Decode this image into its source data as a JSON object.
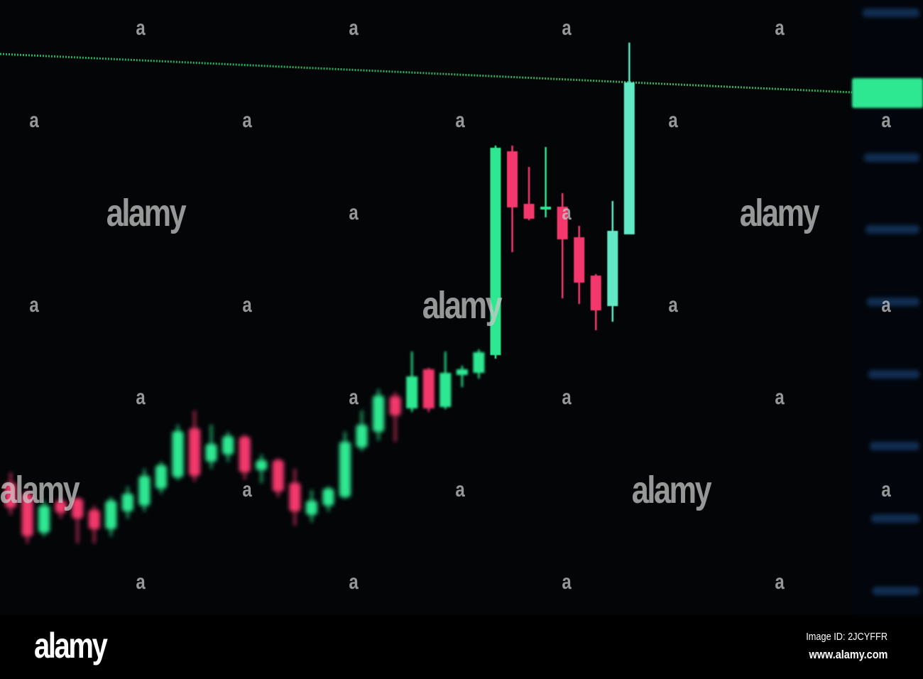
{
  "chart_data": {
    "type": "candlestick",
    "title": "",
    "xlabel": "",
    "ylabel": "",
    "ylim": [
      0,
      86
    ],
    "grid": false,
    "y_tick_labels_legible": false,
    "current_price_line": 74.4,
    "colors": {
      "up": "#2fe891",
      "down": "#f2386c",
      "up_latest": "#62e8c4",
      "price_line": "#2fd070",
      "background": "#030507",
      "axis_text": "#1f4e8a"
    },
    "candles": [
      {
        "o": 18.0,
        "h": 19.5,
        "l": 13.5,
        "c": 14.5
      },
      {
        "o": 16.5,
        "h": 17.0,
        "l": 9.5,
        "c": 10.5
      },
      {
        "o": 11.0,
        "h": 15.5,
        "l": 10.5,
        "c": 14.8
      },
      {
        "o": 15.5,
        "h": 16.0,
        "l": 13.0,
        "c": 13.8
      },
      {
        "o": 15.8,
        "h": 16.0,
        "l": 9.5,
        "c": 13.0
      },
      {
        "o": 14.2,
        "h": 14.8,
        "l": 9.5,
        "c": 11.5
      },
      {
        "o": 11.5,
        "h": 16.0,
        "l": 10.5,
        "c": 15.5
      },
      {
        "o": 14.0,
        "h": 17.5,
        "l": 13.0,
        "c": 16.5
      },
      {
        "o": 14.8,
        "h": 20.0,
        "l": 14.0,
        "c": 19.0
      },
      {
        "o": 17.2,
        "h": 21.0,
        "l": 16.5,
        "c": 20.5
      },
      {
        "o": 18.8,
        "h": 26.2,
        "l": 18.4,
        "c": 25.3
      },
      {
        "o": 25.7,
        "h": 28.2,
        "l": 18.2,
        "c": 19.0
      },
      {
        "o": 21.0,
        "h": 26.2,
        "l": 20.0,
        "c": 23.5
      },
      {
        "o": 22.0,
        "h": 25.2,
        "l": 21.0,
        "c": 24.6
      },
      {
        "o": 24.5,
        "h": 24.8,
        "l": 18.5,
        "c": 19.5
      },
      {
        "o": 19.8,
        "h": 22.0,
        "l": 18.0,
        "c": 21.2
      },
      {
        "o": 21.2,
        "h": 21.5,
        "l": 16.0,
        "c": 16.8
      },
      {
        "o": 18.0,
        "h": 20.0,
        "l": 12.0,
        "c": 14.0
      },
      {
        "o": 13.5,
        "h": 17.0,
        "l": 12.5,
        "c": 15.5
      },
      {
        "o": 14.8,
        "h": 17.5,
        "l": 14.0,
        "c": 17.2
      },
      {
        "o": 16.0,
        "h": 25.2,
        "l": 15.8,
        "c": 23.8
      },
      {
        "o": 23.0,
        "h": 28.2,
        "l": 22.5,
        "c": 26.2
      },
      {
        "o": 25.2,
        "h": 31.2,
        "l": 24.0,
        "c": 30.3
      },
      {
        "o": 30.2,
        "h": 30.8,
        "l": 23.8,
        "c": 27.5
      },
      {
        "o": 28.5,
        "h": 36.5,
        "l": 28.0,
        "c": 33.0
      },
      {
        "o": 34.0,
        "h": 34.2,
        "l": 28.0,
        "c": 28.5
      },
      {
        "o": 28.7,
        "h": 36.5,
        "l": 28.4,
        "c": 33.5
      },
      {
        "o": 33.2,
        "h": 34.5,
        "l": 31.5,
        "c": 34.0
      },
      {
        "o": 33.5,
        "h": 36.8,
        "l": 32.7,
        "c": 36.4
      },
      {
        "o": 36.0,
        "h": 65.5,
        "l": 35.5,
        "c": 65.2
      },
      {
        "o": 64.7,
        "h": 65.5,
        "l": 50.5,
        "c": 56.8
      },
      {
        "o": 57.3,
        "h": 62.5,
        "l": 55.0,
        "c": 55.2
      },
      {
        "o": 56.5,
        "h": 65.3,
        "l": 55.4,
        "c": 56.9
      },
      {
        "o": 56.9,
        "h": 58.8,
        "l": 44.0,
        "c": 52.3
      },
      {
        "o": 52.6,
        "h": 54.2,
        "l": 43.2,
        "c": 46.2
      },
      {
        "o": 47.2,
        "h": 47.4,
        "l": 39.5,
        "c": 42.3
      },
      {
        "o": 42.9,
        "h": 57.7,
        "l": 40.7,
        "c": 53.5
      },
      {
        "o": 53.0,
        "h": 80.0,
        "l": 53.0,
        "c": 74.4
      }
    ]
  },
  "watermark": {
    "logo": "alamy",
    "mark": "a"
  },
  "footer": {
    "logo": "alamy",
    "image_id": "Image ID: 2JCYFFR",
    "url": "www.alamy.com"
  }
}
